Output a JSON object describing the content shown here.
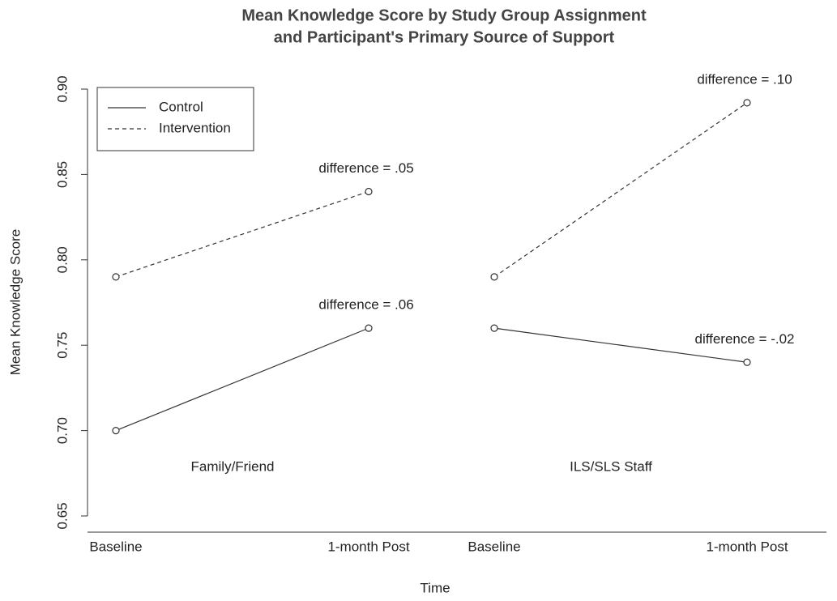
{
  "chart_data": {
    "type": "line",
    "title": [
      "Mean Knowledge Score by Study Group Assignment",
      "and Participant's Primary Source of Support"
    ],
    "xlabel": "Time",
    "ylabel": "Mean Knowledge Score",
    "ylim": [
      0.65,
      0.9
    ],
    "yticks": [
      0.65,
      {
        "value": 0.7,
        "label": "0.70"
      },
      0.75,
      {
        "value": 0.8,
        "label": "0.80"
      },
      0.85,
      {
        "value": 0.9,
        "label": "0.90"
      }
    ],
    "legend_position": "upper left",
    "series": [
      {
        "name": "Control",
        "color": "#333333",
        "dash": "solid"
      },
      {
        "name": "Intervention",
        "color": "#333333",
        "dash": "dashed"
      }
    ],
    "panels": [
      {
        "label": "Family/Friend",
        "categories": [
          "Baseline",
          "1-month Post"
        ],
        "series": [
          {
            "values": [
              0.7,
              0.76
            ],
            "annotation": "difference = .06"
          },
          {
            "values": [
              0.79,
              0.84
            ],
            "annotation": "difference = .05"
          }
        ]
      },
      {
        "label": "ILS/SLS Staff",
        "categories": [
          "Baseline",
          "1-month Post"
        ],
        "series": [
          {
            "values": [
              0.76,
              0.74
            ],
            "annotation": "difference = -.02"
          },
          {
            "values": [
              0.79,
              0.892
            ],
            "annotation": "difference = .10"
          }
        ]
      }
    ]
  }
}
